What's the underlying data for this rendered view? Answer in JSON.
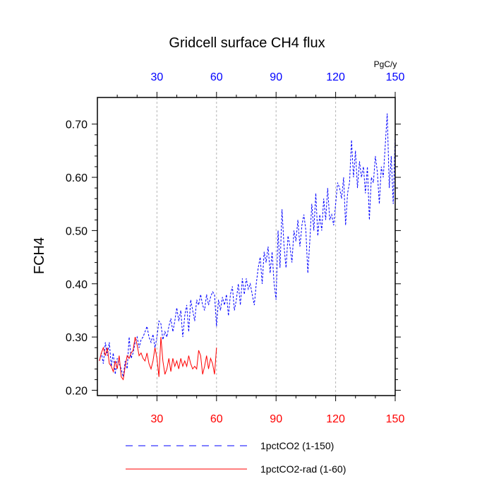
{
  "chart_data": {
    "type": "line",
    "title": "Gridcell surface CH4 flux",
    "ylabel": "FCH4",
    "top_axis_unit": "PgC/y",
    "xlim": [
      0,
      150
    ],
    "ylim": [
      0.19,
      0.75
    ],
    "x_ticks": [
      30,
      60,
      90,
      120,
      150
    ],
    "y_ticks": [
      0.2,
      0.3,
      0.4,
      0.5,
      0.6,
      0.7
    ],
    "y_tick_labels": [
      "0.20",
      "0.30",
      "0.40",
      "0.50",
      "0.60",
      "0.70"
    ],
    "vertical_gridlines": [
      30,
      60,
      90,
      120
    ],
    "legend_position": "bottom",
    "series": [
      {
        "name": "1pctCO2 (1-150)",
        "color": "#0000ff",
        "dash": "dashed",
        "x": [
          1,
          2,
          3,
          4,
          5,
          6,
          7,
          8,
          9,
          10,
          11,
          12,
          13,
          14,
          15,
          16,
          17,
          18,
          19,
          20,
          21,
          22,
          23,
          24,
          25,
          26,
          27,
          28,
          29,
          30,
          31,
          32,
          33,
          34,
          35,
          36,
          37,
          38,
          39,
          40,
          41,
          42,
          43,
          44,
          45,
          46,
          47,
          48,
          49,
          50,
          51,
          52,
          53,
          54,
          55,
          56,
          57,
          58,
          59,
          60,
          61,
          62,
          63,
          64,
          65,
          66,
          67,
          68,
          69,
          70,
          71,
          72,
          73,
          74,
          75,
          76,
          77,
          78,
          79,
          80,
          81,
          82,
          83,
          84,
          85,
          86,
          87,
          88,
          89,
          90,
          91,
          92,
          93,
          94,
          95,
          96,
          97,
          98,
          99,
          100,
          101,
          102,
          103,
          104,
          105,
          106,
          107,
          108,
          109,
          110,
          111,
          112,
          113,
          114,
          115,
          116,
          117,
          118,
          119,
          120,
          121,
          122,
          123,
          124,
          125,
          126,
          127,
          128,
          129,
          130,
          131,
          132,
          133,
          134,
          135,
          136,
          137,
          138,
          139,
          140,
          141,
          142,
          143,
          144,
          145,
          146,
          147,
          148,
          149,
          150
        ],
        "y": [
          0.255,
          0.27,
          0.25,
          0.29,
          0.265,
          0.29,
          0.245,
          0.27,
          0.23,
          0.26,
          0.25,
          0.24,
          0.225,
          0.255,
          0.24,
          0.3,
          0.26,
          0.27,
          0.29,
          0.3,
          0.28,
          0.295,
          0.3,
          0.31,
          0.32,
          0.3,
          0.29,
          0.305,
          0.28,
          0.3,
          0.33,
          0.325,
          0.295,
          0.31,
          0.3,
          0.32,
          0.335,
          0.31,
          0.33,
          0.355,
          0.33,
          0.35,
          0.3,
          0.34,
          0.36,
          0.31,
          0.37,
          0.35,
          0.33,
          0.37,
          0.36,
          0.38,
          0.36,
          0.35,
          0.38,
          0.36,
          0.375,
          0.385,
          0.38,
          0.32,
          0.37,
          0.35,
          0.375,
          0.36,
          0.38,
          0.34,
          0.38,
          0.395,
          0.35,
          0.37,
          0.4,
          0.36,
          0.41,
          0.38,
          0.41,
          0.39,
          0.4,
          0.38,
          0.36,
          0.4,
          0.43,
          0.45,
          0.4,
          0.46,
          0.44,
          0.47,
          0.42,
          0.46,
          0.4,
          0.37,
          0.5,
          0.43,
          0.54,
          0.47,
          0.43,
          0.49,
          0.47,
          0.44,
          0.5,
          0.48,
          0.52,
          0.47,
          0.51,
          0.53,
          0.5,
          0.42,
          0.48,
          0.55,
          0.5,
          0.57,
          0.49,
          0.53,
          0.5,
          0.56,
          0.52,
          0.58,
          0.52,
          0.53,
          0.51,
          0.55,
          0.59,
          0.58,
          0.56,
          0.6,
          0.51,
          0.57,
          0.59,
          0.67,
          0.6,
          0.65,
          0.58,
          0.63,
          0.6,
          0.62,
          0.57,
          0.62,
          0.52,
          0.6,
          0.59,
          0.64,
          0.61,
          0.55,
          0.62,
          0.6,
          0.66,
          0.72,
          0.58,
          0.64,
          0.55,
          0.68
        ]
      },
      {
        "name": "1pctCO2-rad (1-60)",
        "color": "#ff0000",
        "dash": "solid",
        "x": [
          1,
          2,
          3,
          4,
          5,
          6,
          7,
          8,
          9,
          10,
          11,
          12,
          13,
          14,
          15,
          16,
          17,
          18,
          19,
          20,
          21,
          22,
          23,
          24,
          25,
          26,
          27,
          28,
          29,
          30,
          31,
          32,
          33,
          34,
          35,
          36,
          37,
          38,
          39,
          40,
          41,
          42,
          43,
          44,
          45,
          46,
          47,
          48,
          49,
          50,
          51,
          52,
          53,
          54,
          55,
          56,
          57,
          58,
          59,
          60
        ],
        "y": [
          0.255,
          0.27,
          0.28,
          0.265,
          0.28,
          0.25,
          0.245,
          0.235,
          0.255,
          0.24,
          0.265,
          0.225,
          0.22,
          0.245,
          0.265,
          0.26,
          0.27,
          0.275,
          0.3,
          0.285,
          0.265,
          0.27,
          0.26,
          0.255,
          0.27,
          0.25,
          0.24,
          0.255,
          0.28,
          0.26,
          0.225,
          0.3,
          0.255,
          0.23,
          0.24,
          0.26,
          0.235,
          0.26,
          0.245,
          0.255,
          0.24,
          0.26,
          0.245,
          0.255,
          0.245,
          0.265,
          0.25,
          0.24,
          0.245,
          0.24,
          0.275,
          0.265,
          0.23,
          0.245,
          0.265,
          0.24,
          0.26,
          0.25,
          0.23,
          0.28
        ]
      }
    ]
  }
}
